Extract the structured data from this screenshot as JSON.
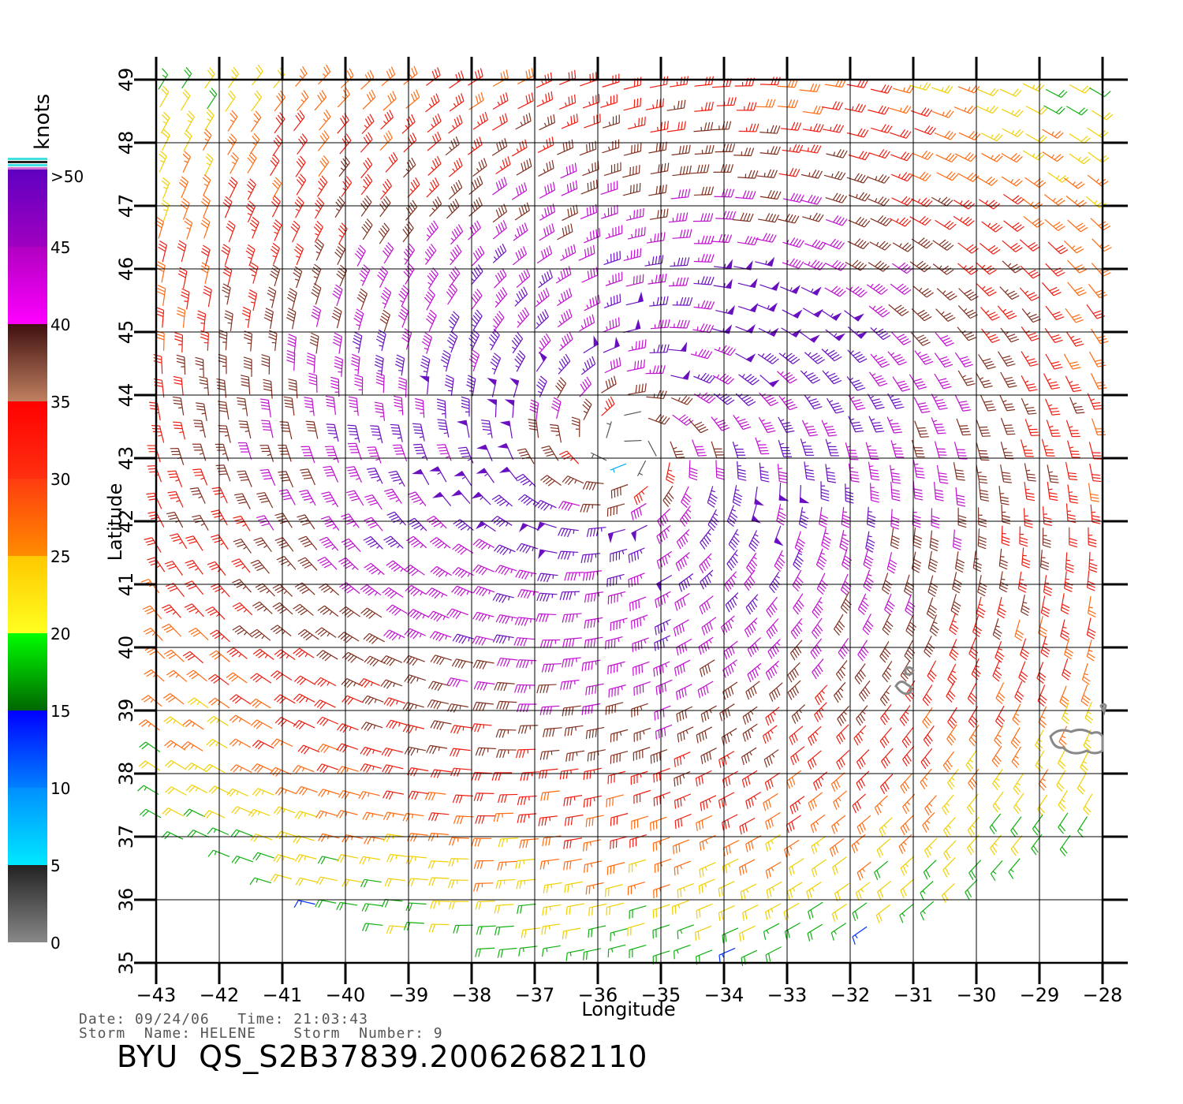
{
  "chart": {
    "xlabel": "Longitude",
    "ylabel": "Latitude",
    "x_ticks": [
      "−43",
      "−42",
      "−41",
      "−40",
      "−39",
      "−38",
      "−37",
      "−36",
      "−35",
      "−34",
      "−33",
      "−32",
      "−31",
      "−30",
      "−29",
      "−28"
    ],
    "y_ticks": [
      "35",
      "36",
      "37",
      "38",
      "39",
      "40",
      "41",
      "42",
      "43",
      "44",
      "45",
      "46",
      "47",
      "48",
      "49"
    ],
    "xlim": [
      -43,
      -28
    ],
    "ylim": [
      35,
      49
    ],
    "grid": true
  },
  "legend": {
    "unit_label": "knots",
    "ticks": [
      "0",
      "5",
      "10",
      "15",
      "20",
      "25",
      "30",
      "35",
      "40",
      "45",
      ">50"
    ],
    "bands": [
      {
        "from": 0,
        "to": 5,
        "colors": [
          "#888888",
          "#222222"
        ]
      },
      {
        "from": 5,
        "to": 10,
        "colors": [
          "#00e8ff",
          "#0090ff"
        ]
      },
      {
        "from": 10,
        "to": 15,
        "colors": [
          "#0080ff",
          "#0000ff"
        ]
      },
      {
        "from": 15,
        "to": 20,
        "colors": [
          "#006600",
          "#00ff00"
        ]
      },
      {
        "from": 20,
        "to": 25,
        "colors": [
          "#ffff20",
          "#ffc800"
        ]
      },
      {
        "from": 25,
        "to": 30,
        "colors": [
          "#ff8c00",
          "#ff3c10"
        ]
      },
      {
        "from": 30,
        "to": 35,
        "colors": [
          "#ff3010",
          "#ff0000"
        ]
      },
      {
        "from": 35,
        "to": 40,
        "colors": [
          "#c08060",
          "#401010"
        ]
      },
      {
        "from": 40,
        "to": 45,
        "colors": [
          "#ff00ff",
          "#b000c0"
        ]
      },
      {
        "from": 45,
        "to": 50,
        "colors": [
          "#a000c0",
          "#6000c0"
        ]
      }
    ]
  },
  "storm": {
    "date_line": "Date: 09/24/06   Time: 21:03:43",
    "name_line": "Storm  Name: HELENE    Storm  Number: 9",
    "product_id": "BYU  QS_S2B37839.20062682110",
    "center": {
      "lon": -35.6,
      "lat": 43.2
    }
  },
  "chart_data": {
    "type": "wind_barbs",
    "xlabel": "Longitude",
    "ylabel": "Latitude",
    "xlim": [
      -43,
      -28
    ],
    "ylim": [
      35,
      49
    ],
    "units": "knots",
    "grid": true,
    "cyclone_center": [
      -35.6,
      43.2
    ],
    "max_wind_knots": 50,
    "land_features": [
      {
        "lon": -31.1,
        "lat": 39.4
      },
      {
        "lon": -28.4,
        "lat": 38.7
      }
    ]
  }
}
